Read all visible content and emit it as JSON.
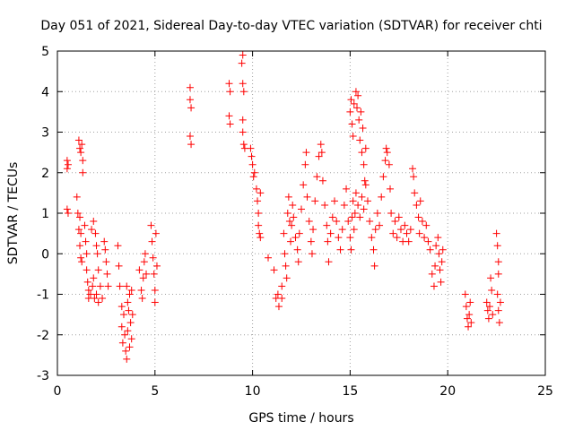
{
  "chart_data": {
    "type": "scatter",
    "title": "Day 051 of 2021, Sidereal Day-to-day VTEC variation (SDTVAR) for receiver chti",
    "xlabel": "GPS time / hours",
    "ylabel": "SDTVAR / TECUs",
    "xlim": [
      0,
      25
    ],
    "ylim": [
      -3,
      5
    ],
    "xticks": [
      0,
      5,
      10,
      15,
      20,
      25
    ],
    "yticks": [
      -3,
      -2,
      -1,
      0,
      1,
      2,
      3,
      4,
      5
    ],
    "grid": true,
    "marker": "+",
    "color": "#ff0000",
    "series": [
      {
        "name": "SDTVAR",
        "points": [
          [
            0.5,
            2.3
          ],
          [
            0.5,
            2.1
          ],
          [
            0.5,
            1.1
          ],
          [
            0.55,
            2.2
          ],
          [
            0.55,
            1.0
          ],
          [
            1.1,
            2.8
          ],
          [
            1.15,
            2.6
          ],
          [
            1.2,
            2.5
          ],
          [
            1.25,
            2.7
          ],
          [
            1.3,
            2.3
          ],
          [
            1.3,
            2.0
          ],
          [
            1.0,
            1.4
          ],
          [
            1.05,
            1.0
          ],
          [
            1.1,
            0.6
          ],
          [
            1.15,
            0.2
          ],
          [
            1.2,
            -0.1
          ],
          [
            1.25,
            -0.2
          ],
          [
            1.2,
            0.5
          ],
          [
            1.15,
            0.9
          ],
          [
            1.4,
            0.7
          ],
          [
            1.45,
            0.3
          ],
          [
            1.5,
            0.0
          ],
          [
            1.5,
            -0.4
          ],
          [
            1.55,
            -0.7
          ],
          [
            1.6,
            -0.9
          ],
          [
            1.6,
            -1.1
          ],
          [
            1.7,
            -1.0
          ],
          [
            1.8,
            -0.8
          ],
          [
            1.85,
            -0.6
          ],
          [
            1.9,
            -1.1
          ],
          [
            2.0,
            -1.0
          ],
          [
            2.1,
            -1.2
          ],
          [
            2.2,
            -0.8
          ],
          [
            2.3,
            -1.1
          ],
          [
            1.75,
            0.6
          ],
          [
            1.85,
            0.8
          ],
          [
            1.95,
            0.5
          ],
          [
            2.0,
            0.2
          ],
          [
            2.05,
            0.0
          ],
          [
            2.1,
            -0.4
          ],
          [
            2.4,
            0.3
          ],
          [
            2.45,
            0.1
          ],
          [
            2.5,
            -0.2
          ],
          [
            2.55,
            -0.5
          ],
          [
            2.6,
            -0.8
          ],
          [
            3.1,
            0.2
          ],
          [
            3.15,
            -0.3
          ],
          [
            3.2,
            -0.8
          ],
          [
            3.3,
            -1.3
          ],
          [
            3.3,
            -1.8
          ],
          [
            3.35,
            -2.2
          ],
          [
            3.4,
            -1.5
          ],
          [
            3.45,
            -2.0
          ],
          [
            3.5,
            -2.4
          ],
          [
            3.55,
            -2.6
          ],
          [
            3.6,
            -1.9
          ],
          [
            3.65,
            -1.4
          ],
          [
            3.7,
            -2.3
          ],
          [
            3.7,
            -1.0
          ],
          [
            3.75,
            -1.7
          ],
          [
            3.8,
            -2.1
          ],
          [
            3.55,
            -0.8
          ],
          [
            3.6,
            -1.2
          ],
          [
            3.8,
            -0.9
          ],
          [
            3.85,
            -1.5
          ],
          [
            4.2,
            -0.4
          ],
          [
            4.3,
            -0.9
          ],
          [
            4.35,
            -1.1
          ],
          [
            4.4,
            -0.6
          ],
          [
            4.45,
            -0.2
          ],
          [
            4.5,
            0.0
          ],
          [
            4.55,
            -0.5
          ],
          [
            4.8,
            0.7
          ],
          [
            4.85,
            0.3
          ],
          [
            4.9,
            -0.1
          ],
          [
            4.95,
            -0.5
          ],
          [
            5.0,
            -0.9
          ],
          [
            5.0,
            -1.2
          ],
          [
            5.05,
            0.5
          ],
          [
            5.1,
            -0.3
          ],
          [
            6.8,
            4.1
          ],
          [
            6.8,
            3.8
          ],
          [
            6.85,
            3.6
          ],
          [
            6.8,
            2.9
          ],
          [
            6.85,
            2.7
          ],
          [
            8.8,
            4.2
          ],
          [
            8.85,
            4.0
          ],
          [
            8.8,
            3.4
          ],
          [
            8.85,
            3.2
          ],
          [
            9.5,
            4.9
          ],
          [
            9.45,
            4.7
          ],
          [
            9.5,
            4.2
          ],
          [
            9.55,
            4.0
          ],
          [
            9.5,
            3.3
          ],
          [
            9.55,
            2.7
          ],
          [
            9.6,
            2.6
          ],
          [
            9.5,
            3.0
          ],
          [
            9.9,
            2.6
          ],
          [
            9.95,
            2.4
          ],
          [
            10.0,
            2.2
          ],
          [
            10.05,
            1.9
          ],
          [
            10.1,
            2.0
          ],
          [
            10.2,
            1.6
          ],
          [
            10.25,
            1.3
          ],
          [
            10.3,
            1.0
          ],
          [
            10.3,
            0.7
          ],
          [
            10.35,
            0.5
          ],
          [
            10.4,
            0.4
          ],
          [
            10.4,
            1.5
          ],
          [
            10.8,
            -0.1
          ],
          [
            11.1,
            -0.4
          ],
          [
            11.2,
            -1.1
          ],
          [
            11.3,
            -1.0
          ],
          [
            11.35,
            -1.3
          ],
          [
            11.5,
            -0.8
          ],
          [
            11.5,
            -1.1
          ],
          [
            11.6,
            0.5
          ],
          [
            11.65,
            0.0
          ],
          [
            11.7,
            -0.3
          ],
          [
            11.75,
            -0.6
          ],
          [
            11.8,
            1.0
          ],
          [
            11.85,
            1.4
          ],
          [
            11.9,
            0.8
          ],
          [
            11.95,
            0.3
          ],
          [
            12.0,
            0.7
          ],
          [
            12.05,
            1.2
          ],
          [
            12.1,
            0.9
          ],
          [
            12.2,
            0.4
          ],
          [
            12.3,
            0.1
          ],
          [
            12.35,
            -0.2
          ],
          [
            12.4,
            0.5
          ],
          [
            12.5,
            1.1
          ],
          [
            12.6,
            1.7
          ],
          [
            12.7,
            2.2
          ],
          [
            12.75,
            2.5
          ],
          [
            12.8,
            1.4
          ],
          [
            12.9,
            0.8
          ],
          [
            13.0,
            0.3
          ],
          [
            13.05,
            0.0
          ],
          [
            13.1,
            0.6
          ],
          [
            13.2,
            1.3
          ],
          [
            13.3,
            1.9
          ],
          [
            13.4,
            2.4
          ],
          [
            13.5,
            2.7
          ],
          [
            13.55,
            2.5
          ],
          [
            13.6,
            1.8
          ],
          [
            13.7,
            1.2
          ],
          [
            13.8,
            0.7
          ],
          [
            13.85,
            0.3
          ],
          [
            13.9,
            -0.2
          ],
          [
            14.0,
            0.5
          ],
          [
            14.1,
            0.9
          ],
          [
            14.2,
            1.3
          ],
          [
            14.3,
            0.8
          ],
          [
            14.4,
            0.4
          ],
          [
            14.5,
            0.1
          ],
          [
            14.6,
            0.6
          ],
          [
            14.7,
            1.2
          ],
          [
            14.8,
            1.6
          ],
          [
            14.9,
            0.8
          ],
          [
            15.0,
            0.4
          ],
          [
            15.05,
            0.1
          ],
          [
            15.1,
            0.9
          ],
          [
            15.15,
            1.3
          ],
          [
            15.2,
            0.6
          ],
          [
            15.25,
            1.0
          ],
          [
            15.0,
            3.5
          ],
          [
            15.05,
            3.8
          ],
          [
            15.1,
            3.2
          ],
          [
            15.15,
            2.9
          ],
          [
            15.2,
            3.7
          ],
          [
            15.3,
            4.0
          ],
          [
            15.35,
            3.6
          ],
          [
            15.4,
            3.9
          ],
          [
            15.45,
            3.3
          ],
          [
            15.5,
            2.8
          ],
          [
            15.55,
            3.5
          ],
          [
            15.6,
            2.5
          ],
          [
            15.65,
            3.1
          ],
          [
            15.7,
            2.2
          ],
          [
            15.75,
            1.8
          ],
          [
            15.8,
            2.6
          ],
          [
            15.3,
            1.5
          ],
          [
            15.4,
            1.2
          ],
          [
            15.5,
            0.9
          ],
          [
            15.6,
            1.4
          ],
          [
            15.7,
            1.1
          ],
          [
            15.8,
            1.7
          ],
          [
            15.9,
            1.3
          ],
          [
            16.0,
            0.8
          ],
          [
            16.1,
            0.4
          ],
          [
            16.2,
            0.1
          ],
          [
            16.25,
            -0.3
          ],
          [
            16.3,
            0.6
          ],
          [
            16.4,
            1.0
          ],
          [
            16.5,
            0.7
          ],
          [
            16.6,
            1.4
          ],
          [
            16.7,
            1.9
          ],
          [
            16.8,
            2.3
          ],
          [
            16.85,
            2.6
          ],
          [
            16.9,
            2.5
          ],
          [
            17.0,
            2.2
          ],
          [
            17.05,
            1.6
          ],
          [
            17.1,
            1.0
          ],
          [
            17.2,
            0.5
          ],
          [
            17.3,
            0.8
          ],
          [
            17.4,
            0.4
          ],
          [
            17.5,
            0.9
          ],
          [
            17.6,
            0.6
          ],
          [
            17.7,
            0.3
          ],
          [
            17.8,
            0.7
          ],
          [
            17.9,
            0.5
          ],
          [
            18.0,
            0.3
          ],
          [
            18.1,
            0.6
          ],
          [
            18.2,
            2.1
          ],
          [
            18.25,
            1.9
          ],
          [
            18.3,
            1.5
          ],
          [
            18.4,
            1.2
          ],
          [
            18.5,
            0.9
          ],
          [
            18.55,
            0.5
          ],
          [
            18.6,
            1.3
          ],
          [
            18.7,
            0.8
          ],
          [
            18.8,
            0.4
          ],
          [
            18.9,
            0.7
          ],
          [
            19.0,
            0.3
          ],
          [
            19.1,
            0.1
          ],
          [
            19.2,
            -0.5
          ],
          [
            19.3,
            -0.8
          ],
          [
            19.35,
            -0.3
          ],
          [
            19.4,
            0.2
          ],
          [
            19.5,
            0.4
          ],
          [
            19.55,
            0.0
          ],
          [
            19.6,
            -0.4
          ],
          [
            19.65,
            -0.7
          ],
          [
            19.7,
            -0.2
          ],
          [
            19.75,
            0.1
          ],
          [
            20.9,
            -1.0
          ],
          [
            20.95,
            -1.3
          ],
          [
            21.0,
            -1.6
          ],
          [
            21.05,
            -1.8
          ],
          [
            21.1,
            -1.5
          ],
          [
            21.15,
            -1.2
          ],
          [
            21.2,
            -1.7
          ],
          [
            22.0,
            -1.2
          ],
          [
            22.05,
            -1.4
          ],
          [
            22.1,
            -1.6
          ],
          [
            22.15,
            -1.3
          ],
          [
            22.2,
            -0.6
          ],
          [
            22.25,
            -0.9
          ],
          [
            22.3,
            -1.5
          ],
          [
            22.5,
            0.5
          ],
          [
            22.55,
            0.2
          ],
          [
            22.6,
            -0.2
          ],
          [
            22.6,
            -0.5
          ],
          [
            22.55,
            -1.0
          ],
          [
            22.6,
            -1.4
          ],
          [
            22.65,
            -1.7
          ],
          [
            22.7,
            -1.2
          ]
        ]
      }
    ]
  }
}
